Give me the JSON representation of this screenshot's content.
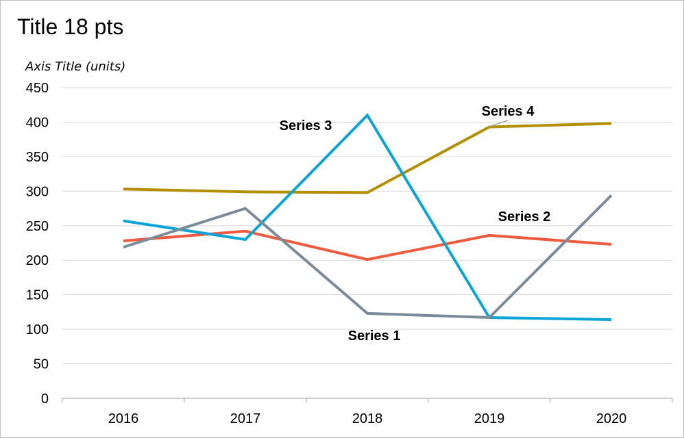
{
  "chart_data": {
    "type": "line",
    "title": "Title 18 pts",
    "ylabel": "Axis Title (units)",
    "xlabel": "",
    "categories": [
      "2016",
      "2017",
      "2018",
      "2019",
      "2020"
    ],
    "ylim": [
      0,
      450
    ],
    "yticks": [
      "0",
      "50",
      "100",
      "150",
      "200",
      "250",
      "300",
      "350",
      "400",
      "450"
    ],
    "grid": true,
    "legend": "none",
    "series": [
      {
        "name": "Series 1",
        "color": "#7a8b99",
        "values": [
          219,
          275,
          123,
          117,
          294
        ]
      },
      {
        "name": "Series 2",
        "color": "#f05a3c",
        "values": [
          228,
          242,
          201,
          236,
          223
        ]
      },
      {
        "name": "Series 3",
        "color": "#0aa5d8",
        "values": [
          257,
          230,
          410,
          117,
          114
        ]
      },
      {
        "name": "Series 4",
        "color": "#b38f00",
        "values": [
          303,
          299,
          298,
          393,
          398
        ]
      }
    ]
  }
}
